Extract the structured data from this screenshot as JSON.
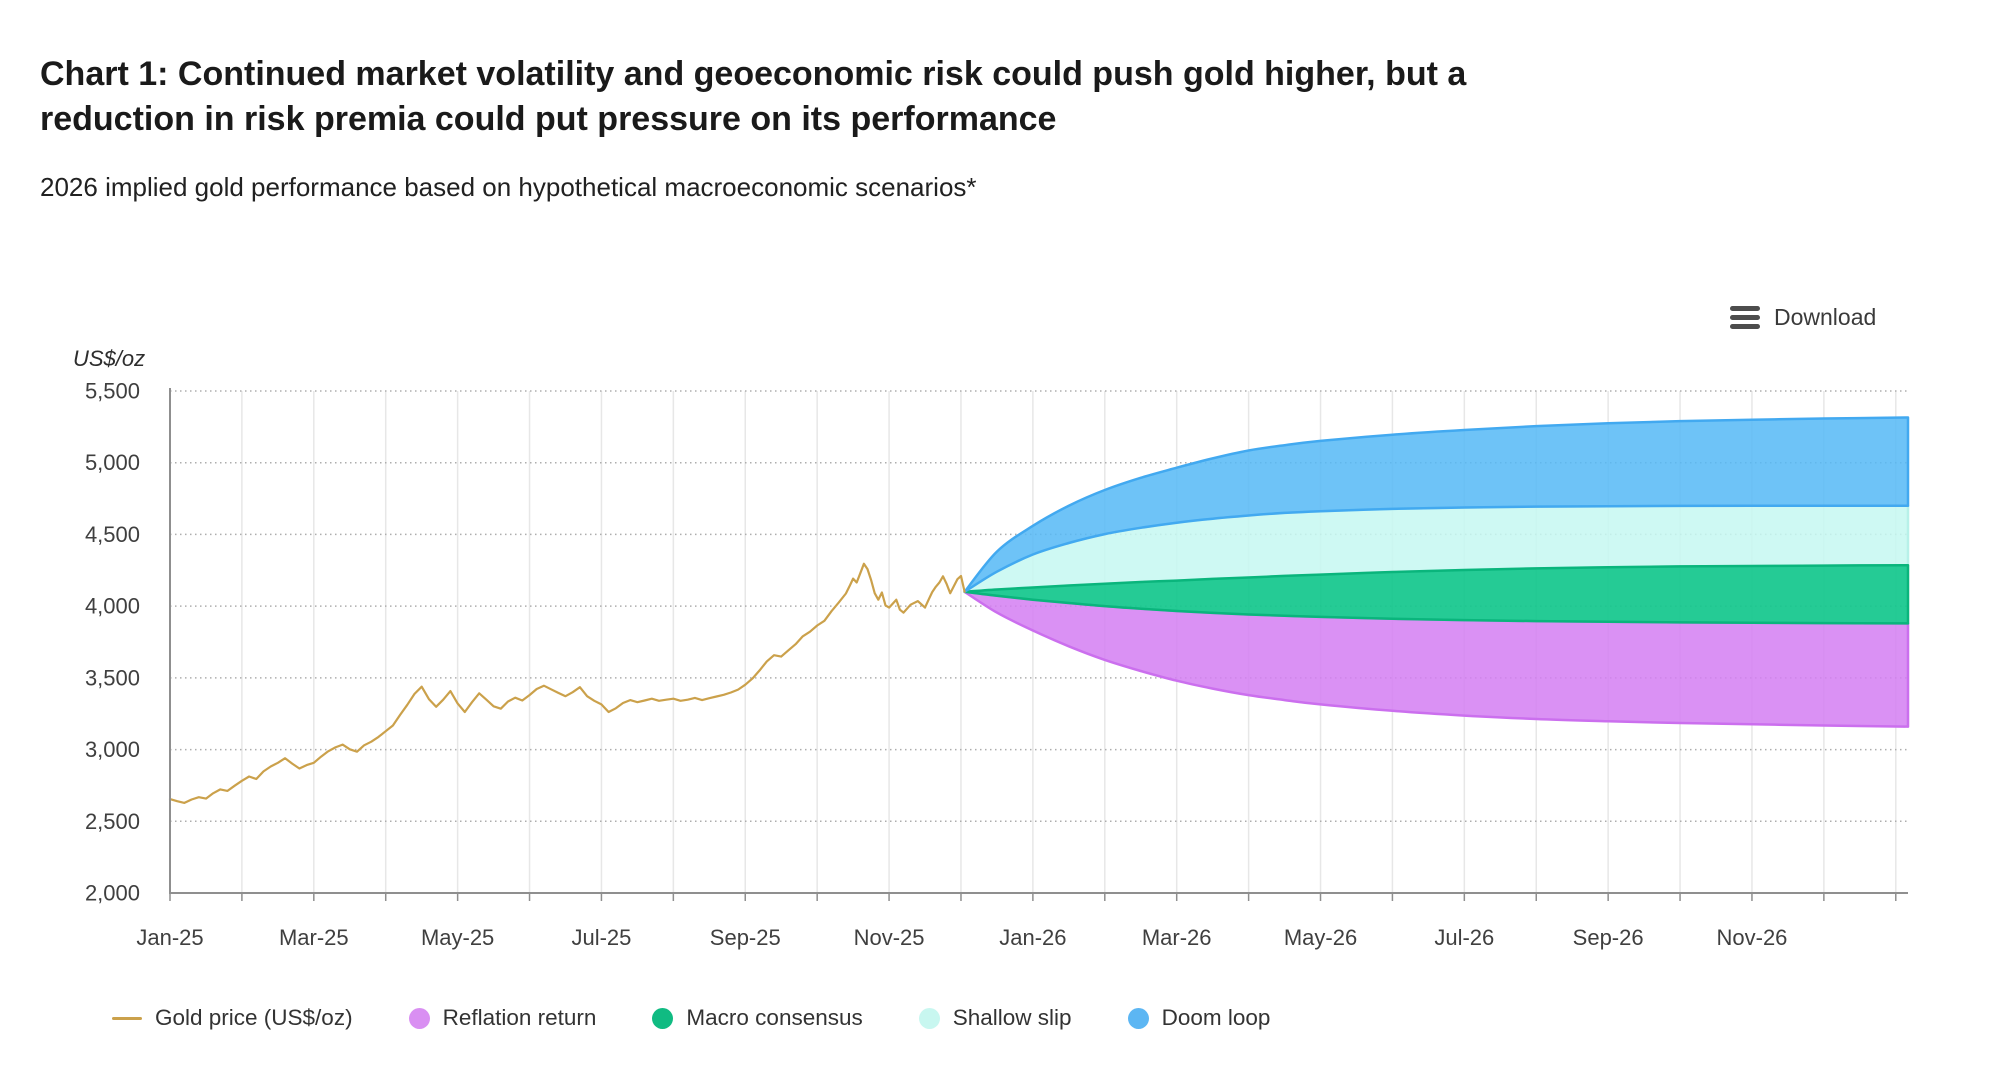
{
  "header": {
    "title_line1": "Chart 1: Continued market volatility and geoeconomic risk could push gold higher, but a",
    "title_line2": "reduction in risk premia could put pressure on its performance",
    "subtitle": "2026 implied gold performance based on hypothetical macroeconomic scenarios*"
  },
  "toolbar": {
    "download_label": "Download",
    "download_icon": "hamburger-menu-icon"
  },
  "chart_data": {
    "type": "line",
    "title": "Chart 1: Continued market volatility and geoeconomic risk could push gold higher, but a reduction in risk premia could put pressure on its performance",
    "subtitle": "2026 implied gold performance based on hypothetical macroeconomic scenarios*",
    "y_axis": {
      "label": "US$/oz",
      "min": 2000,
      "max": 5500,
      "tick_step": 500,
      "tick_labels": [
        "2,000",
        "2,500",
        "3,000",
        "3,500",
        "4,000",
        "4,500",
        "5,000",
        "5,500"
      ],
      "gridline_style": "dotted"
    },
    "x_axis": {
      "t_max": 24.17,
      "months_span": "Jan-25 to Dec-26",
      "tick_positions_months": [
        0,
        2,
        4,
        6,
        8,
        10,
        12,
        14,
        16,
        18,
        20,
        22
      ],
      "tick_labels": [
        "Jan-25",
        "Mar-25",
        "May-25",
        "Jul-25",
        "Sep-25",
        "Nov-25",
        "Jan-26",
        "Mar-26",
        "May-26",
        "Jul-26",
        "Sep-26",
        "Nov-26"
      ],
      "minor_tick_every_month": true,
      "gridline_style": "solid"
    },
    "gold_series": {
      "name": "Gold price (US$/oz)",
      "color": "#cba14b",
      "points": [
        [
          0,
          2655
        ],
        [
          0.1,
          2640
        ],
        [
          0.2,
          2628
        ],
        [
          0.3,
          2652
        ],
        [
          0.4,
          2668
        ],
        [
          0.5,
          2658
        ],
        [
          0.6,
          2695
        ],
        [
          0.7,
          2722
        ],
        [
          0.8,
          2712
        ],
        [
          0.9,
          2748
        ],
        [
          1,
          2782
        ],
        [
          1.1,
          2812
        ],
        [
          1.2,
          2795
        ],
        [
          1.3,
          2848
        ],
        [
          1.4,
          2882
        ],
        [
          1.5,
          2908
        ],
        [
          1.6,
          2940
        ],
        [
          1.7,
          2902
        ],
        [
          1.8,
          2868
        ],
        [
          1.9,
          2892
        ],
        [
          2,
          2908
        ],
        [
          2.1,
          2950
        ],
        [
          2.2,
          2988
        ],
        [
          2.3,
          3015
        ],
        [
          2.4,
          3035
        ],
        [
          2.5,
          3002
        ],
        [
          2.6,
          2985
        ],
        [
          2.7,
          3030
        ],
        [
          2.8,
          3055
        ],
        [
          2.9,
          3088
        ],
        [
          3,
          3128
        ],
        [
          3.1,
          3168
        ],
        [
          3.2,
          3242
        ],
        [
          3.3,
          3312
        ],
        [
          3.4,
          3388
        ],
        [
          3.5,
          3438
        ],
        [
          3.6,
          3352
        ],
        [
          3.7,
          3298
        ],
        [
          3.8,
          3348
        ],
        [
          3.9,
          3408
        ],
        [
          4,
          3322
        ],
        [
          4.1,
          3262
        ],
        [
          4.2,
          3330
        ],
        [
          4.3,
          3392
        ],
        [
          4.4,
          3348
        ],
        [
          4.5,
          3302
        ],
        [
          4.6,
          3285
        ],
        [
          4.7,
          3335
        ],
        [
          4.8,
          3362
        ],
        [
          4.9,
          3342
        ],
        [
          5,
          3380
        ],
        [
          5.1,
          3422
        ],
        [
          5.2,
          3445
        ],
        [
          5.3,
          3420
        ],
        [
          5.4,
          3395
        ],
        [
          5.5,
          3372
        ],
        [
          5.6,
          3400
        ],
        [
          5.7,
          3435
        ],
        [
          5.8,
          3372
        ],
        [
          5.9,
          3340
        ],
        [
          6,
          3315
        ],
        [
          6.1,
          3262
        ],
        [
          6.2,
          3288
        ],
        [
          6.3,
          3325
        ],
        [
          6.4,
          3345
        ],
        [
          6.5,
          3330
        ],
        [
          6.6,
          3342
        ],
        [
          6.7,
          3355
        ],
        [
          6.8,
          3340
        ],
        [
          6.9,
          3348
        ],
        [
          7,
          3355
        ],
        [
          7.1,
          3340
        ],
        [
          7.2,
          3348
        ],
        [
          7.3,
          3360
        ],
        [
          7.4,
          3345
        ],
        [
          7.5,
          3358
        ],
        [
          7.6,
          3370
        ],
        [
          7.7,
          3382
        ],
        [
          7.8,
          3398
        ],
        [
          7.9,
          3418
        ],
        [
          8,
          3452
        ],
        [
          8.1,
          3495
        ],
        [
          8.2,
          3552
        ],
        [
          8.3,
          3615
        ],
        [
          8.4,
          3658
        ],
        [
          8.5,
          3648
        ],
        [
          8.6,
          3692
        ],
        [
          8.7,
          3735
        ],
        [
          8.8,
          3790
        ],
        [
          8.9,
          3822
        ],
        [
          9,
          3865
        ],
        [
          9.1,
          3898
        ],
        [
          9.2,
          3965
        ],
        [
          9.3,
          4025
        ],
        [
          9.4,
          4088
        ],
        [
          9.45,
          4138
        ],
        [
          9.5,
          4192
        ],
        [
          9.55,
          4165
        ],
        [
          9.6,
          4230
        ],
        [
          9.65,
          4295
        ],
        [
          9.7,
          4258
        ],
        [
          9.75,
          4182
        ],
        [
          9.8,
          4090
        ],
        [
          9.85,
          4045
        ],
        [
          9.9,
          4095
        ],
        [
          9.95,
          4005
        ],
        [
          10,
          3990
        ],
        [
          10.1,
          4045
        ],
        [
          10.15,
          3975
        ],
        [
          10.2,
          3955
        ],
        [
          10.3,
          4010
        ],
        [
          10.4,
          4035
        ],
        [
          10.5,
          3990
        ],
        [
          10.55,
          4045
        ],
        [
          10.6,
          4098
        ],
        [
          10.65,
          4135
        ],
        [
          10.7,
          4165
        ],
        [
          10.75,
          4208
        ],
        [
          10.8,
          4155
        ],
        [
          10.85,
          4090
        ],
        [
          10.9,
          4138
        ],
        [
          10.95,
          4188
        ],
        [
          11,
          4210
        ],
        [
          11.05,
          4100
        ]
      ]
    },
    "fan_start_month": 11.05,
    "fan_start_value": 4100,
    "fan_x": [
      11.05,
      11.5,
      12,
      12.5,
      13,
      13.5,
      14,
      14.5,
      15,
      15.5,
      16,
      17,
      18,
      19,
      20,
      21,
      22,
      23,
      24.17
    ],
    "scenarios": [
      {
        "name": "Reflation return",
        "fill": "#d37ef2",
        "fill_opacity": 0.85,
        "stroke": "#cb6fee",
        "upper": [
          4100,
          4072,
          4045,
          4022,
          4000,
          3982,
          3966,
          3953,
          3942,
          3933,
          3925,
          3912,
          3903,
          3896,
          3891,
          3887,
          3884,
          3882,
          3880
        ],
        "lower": [
          4100,
          3955,
          3830,
          3720,
          3625,
          3548,
          3480,
          3425,
          3380,
          3345,
          3315,
          3270,
          3237,
          3213,
          3197,
          3185,
          3176,
          3168,
          3160
        ],
        "end_range": [
          3160,
          3880
        ]
      },
      {
        "name": "Macro consensus",
        "fill": "#12c78c",
        "fill_opacity": 0.92,
        "stroke": "#0ab57c",
        "upper": [
          4100,
          4116,
          4130,
          4144,
          4156,
          4168,
          4178,
          4190,
          4200,
          4211,
          4220,
          4238,
          4252,
          4263,
          4271,
          4277,
          4280,
          4283,
          4285
        ],
        "lower": [
          4100,
          4072,
          4045,
          4022,
          4000,
          3982,
          3966,
          3953,
          3942,
          3933,
          3925,
          3912,
          3903,
          3896,
          3891,
          3887,
          3884,
          3882,
          3880
        ],
        "end_range": [
          3880,
          4285
        ]
      },
      {
        "name": "Shallow slip",
        "fill": "#c6f8f1",
        "fill_opacity": 0.85,
        "stroke": "#b7f1e9",
        "upper": [
          4100,
          4240,
          4360,
          4440,
          4502,
          4546,
          4582,
          4610,
          4632,
          4650,
          4662,
          4678,
          4688,
          4694,
          4697,
          4699,
          4700,
          4700,
          4700
        ],
        "lower": [
          4100,
          4116,
          4130,
          4144,
          4156,
          4168,
          4178,
          4190,
          4200,
          4211,
          4220,
          4238,
          4252,
          4263,
          4271,
          4277,
          4280,
          4283,
          4285
        ],
        "end_range": [
          4285,
          4700
        ]
      },
      {
        "name": "Doom loop",
        "fill": "#55b8f6",
        "fill_opacity": 0.85,
        "stroke": "#42a9f0",
        "upper": [
          4100,
          4380,
          4560,
          4700,
          4810,
          4895,
          4965,
          5030,
          5085,
          5122,
          5152,
          5195,
          5228,
          5255,
          5275,
          5290,
          5300,
          5308,
          5315
        ],
        "lower": [
          4100,
          4240,
          4360,
          4440,
          4502,
          4546,
          4582,
          4610,
          4632,
          4650,
          4662,
          4678,
          4688,
          4694,
          4697,
          4699,
          4700,
          4700,
          4700
        ],
        "end_range": [
          4700,
          5315
        ]
      }
    ],
    "legend": [
      {
        "label": "Gold price (US$/oz)",
        "swatch": "line",
        "color": "#cba14b"
      },
      {
        "label": "Reflation return",
        "swatch": "circle",
        "color": "#d98ff2"
      },
      {
        "label": "Macro consensus",
        "swatch": "circle",
        "color": "#10bb82"
      },
      {
        "label": "Shallow slip",
        "swatch": "circle",
        "color": "#c8f7f0"
      },
      {
        "label": "Doom loop",
        "swatch": "circle",
        "color": "#5cb6f3"
      }
    ],
    "legend_position": "bottom"
  }
}
